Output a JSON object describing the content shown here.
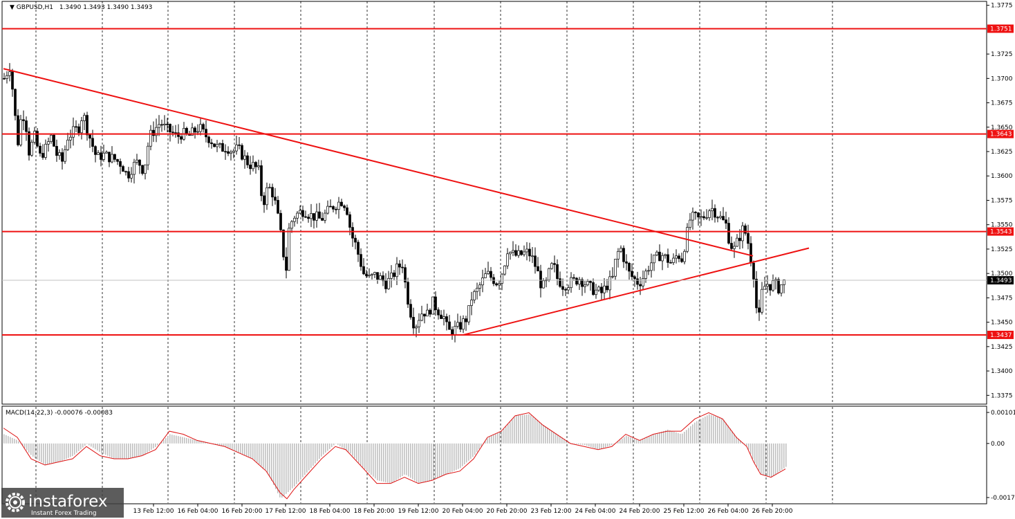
{
  "header": {
    "symbol": "GBPUSD,H1",
    "ohlc": "1.3490 1.3493 1.3490 1.3493"
  },
  "macd": {
    "label": "MACD(14,22,3) -0.00076 -0.00083"
  },
  "colors": {
    "level_line": "#ee1111",
    "candle": "#000000",
    "macd_hist": "#c0c0c0",
    "macd_signal": "#dd1111",
    "grid": "#000000"
  },
  "brand": {
    "name": "instaforex",
    "tagline": "Instant Forex Trading"
  },
  "chart_data": [
    {
      "type": "candlestick",
      "symbol": "GBPUSD",
      "timeframe": "H1",
      "y_ticks": [
        "1.3775",
        "1.3725",
        "1.3700",
        "1.3675",
        "1.3650",
        "1.3625",
        "1.3600",
        "1.3575",
        "1.3550",
        "1.3525",
        "1.3500",
        "1.3475",
        "1.3450",
        "1.3425",
        "1.3400",
        "1.3375"
      ],
      "ylim": [
        1.3366,
        1.3779
      ],
      "x_ticks": [
        "13 Feb 12:00",
        "16 Feb 04:00",
        "16 Feb 20:00",
        "17 Feb 12:00",
        "18 Feb 04:00",
        "18 Feb 20:00",
        "19 Feb 12:00",
        "20 Feb 04:00",
        "20 Feb 20:00",
        "23 Feb 12:00",
        "24 Feb 04:00",
        "24 Feb 20:00",
        "25 Feb 12:00",
        "26 Feb 04:00",
        "26 Feb 20:00"
      ],
      "horizontal_levels": [
        {
          "value": 1.3751,
          "label": "1.3751"
        },
        {
          "value": 1.3643,
          "label": "1.3643"
        },
        {
          "value": 1.3543,
          "label": "1.3543"
        },
        {
          "value": 1.3437,
          "label": "1.3437"
        }
      ],
      "current_price": {
        "value": 1.3493,
        "label": "1.3493"
      },
      "trendlines": [
        {
          "name": "descending resistance",
          "points": [
            [
              0,
              1.371
            ],
            [
              1084,
              1.3518
            ]
          ]
        },
        {
          "name": "ascending support",
          "points": [
            [
              665,
              1.3437
            ],
            [
              1165,
              1.3526
            ]
          ]
        }
      ],
      "price_path": [
        [
          0,
          1.37
        ],
        [
          8,
          1.3712
        ],
        [
          12,
          1.369
        ],
        [
          16,
          1.366
        ],
        [
          20,
          1.3635
        ],
        [
          26,
          1.3668
        ],
        [
          32,
          1.365
        ],
        [
          36,
          1.3625
        ],
        [
          44,
          1.364
        ],
        [
          52,
          1.362
        ],
        [
          60,
          1.3628
        ],
        [
          68,
          1.364
        ],
        [
          76,
          1.3622
        ],
        [
          84,
          1.3615
        ],
        [
          92,
          1.364
        ],
        [
          100,
          1.3645
        ],
        [
          108,
          1.365
        ],
        [
          114,
          1.3665
        ],
        [
          120,
          1.3648
        ],
        [
          126,
          1.3635
        ],
        [
          134,
          1.3618
        ],
        [
          142,
          1.3622
        ],
        [
          150,
          1.362
        ],
        [
          160,
          1.3617
        ],
        [
          170,
          1.3612
        ],
        [
          178,
          1.36
        ],
        [
          186,
          1.361
        ],
        [
          194,
          1.3615
        ],
        [
          202,
          1.3605
        ],
        [
          210,
          1.364
        ],
        [
          218,
          1.3648
        ],
        [
          226,
          1.3655
        ],
        [
          234,
          1.3648
        ],
        [
          242,
          1.3645
        ],
        [
          250,
          1.364
        ],
        [
          258,
          1.3644
        ],
        [
          266,
          1.364
        ],
        [
          274,
          1.3645
        ],
        [
          282,
          1.365
        ],
        [
          290,
          1.3642
        ],
        [
          298,
          1.3638
        ],
        [
          306,
          1.363
        ],
        [
          314,
          1.3628
        ],
        [
          322,
          1.363
        ],
        [
          330,
          1.3625
        ],
        [
          338,
          1.3628
        ],
        [
          346,
          1.362
        ],
        [
          354,
          1.3612
        ],
        [
          362,
          1.361
        ],
        [
          368,
          1.3605
        ],
        [
          374,
          1.357
        ],
        [
          380,
          1.3585
        ],
        [
          386,
          1.3588
        ],
        [
          392,
          1.3572
        ],
        [
          398,
          1.355
        ],
        [
          404,
          1.352
        ],
        [
          408,
          1.3505
        ],
        [
          412,
          1.3545
        ],
        [
          418,
          1.3558
        ],
        [
          426,
          1.3562
        ],
        [
          434,
          1.3565
        ],
        [
          442,
          1.356
        ],
        [
          450,
          1.3558
        ],
        [
          458,
          1.3555
        ],
        [
          466,
          1.3562
        ],
        [
          474,
          1.3568
        ],
        [
          482,
          1.3572
        ],
        [
          490,
          1.3575
        ],
        [
          496,
          1.3565
        ],
        [
          502,
          1.354
        ],
        [
          508,
          1.353
        ],
        [
          514,
          1.3515
        ],
        [
          520,
          1.35
        ],
        [
          528,
          1.3495
        ],
        [
          536,
          1.3498
        ],
        [
          544,
          1.3495
        ],
        [
          552,
          1.349
        ],
        [
          560,
          1.3495
        ],
        [
          568,
          1.3505
        ],
        [
          576,
          1.351
        ],
        [
          582,
          1.348
        ],
        [
          588,
          1.346
        ],
        [
          594,
          1.3445
        ],
        [
          600,
          1.3455
        ],
        [
          606,
          1.3462
        ],
        [
          612,
          1.3458
        ],
        [
          620,
          1.347
        ],
        [
          628,
          1.3462
        ],
        [
          636,
          1.3455
        ],
        [
          642,
          1.344
        ],
        [
          650,
          1.3442
        ],
        [
          658,
          1.3445
        ],
        [
          664,
          1.345
        ],
        [
          670,
          1.3455
        ],
        [
          676,
          1.3475
        ],
        [
          682,
          1.348
        ],
        [
          690,
          1.349
        ],
        [
          698,
          1.35
        ],
        [
          706,
          1.3495
        ],
        [
          714,
          1.349
        ],
        [
          722,
          1.3505
        ],
        [
          728,
          1.3525
        ],
        [
          734,
          1.352
        ],
        [
          742,
          1.3518
        ],
        [
          750,
          1.352
        ],
        [
          758,
          1.3522
        ],
        [
          764,
          1.3515
        ],
        [
          770,
          1.3505
        ],
        [
          776,
          1.349
        ],
        [
          782,
          1.3485
        ],
        [
          788,
          1.35
        ],
        [
          794,
          1.351
        ],
        [
          800,
          1.3495
        ],
        [
          808,
          1.3488
        ],
        [
          816,
          1.349
        ],
        [
          824,
          1.3492
        ],
        [
          832,
          1.3495
        ],
        [
          840,
          1.349
        ],
        [
          848,
          1.3485
        ],
        [
          856,
          1.3482
        ],
        [
          864,
          1.348
        ],
        [
          872,
          1.3488
        ],
        [
          880,
          1.3495
        ],
        [
          886,
          1.352
        ],
        [
          892,
          1.3525
        ],
        [
          898,
          1.3512
        ],
        [
          904,
          1.35
        ],
        [
          910,
          1.3495
        ],
        [
          918,
          1.349
        ],
        [
          926,
          1.3498
        ],
        [
          934,
          1.351
        ],
        [
          942,
          1.3515
        ],
        [
          950,
          1.352
        ],
        [
          958,
          1.3515
        ],
        [
          966,
          1.351
        ],
        [
          974,
          1.352
        ],
        [
          980,
          1.3515
        ],
        [
          986,
          1.3535
        ],
        [
          992,
          1.3555
        ],
        [
          998,
          1.3558
        ],
        [
          1006,
          1.3555
        ],
        [
          1014,
          1.356
        ],
        [
          1022,
          1.3568
        ],
        [
          1030,
          1.3562
        ],
        [
          1038,
          1.3555
        ],
        [
          1044,
          1.355
        ],
        [
          1050,
          1.353
        ],
        [
          1056,
          1.3525
        ],
        [
          1062,
          1.3535
        ],
        [
          1068,
          1.3545
        ],
        [
          1074,
          1.354
        ],
        [
          1080,
          1.3515
        ],
        [
          1084,
          1.35
        ],
        [
          1088,
          1.3465
        ],
        [
          1092,
          1.3455
        ],
        [
          1096,
          1.348
        ],
        [
          1102,
          1.349
        ],
        [
          1108,
          1.3488
        ],
        [
          1114,
          1.349
        ],
        [
          1120,
          1.3485
        ],
        [
          1126,
          1.349
        ],
        [
          1131,
          1.3493
        ]
      ]
    },
    {
      "type": "macd",
      "label": "MACD(14,22,3) -0.00076 -0.00083",
      "y_ticks": [
        "0.00101",
        "0.00",
        "-0.00176"
      ],
      "ylim": [
        -0.00176,
        0.00101
      ],
      "histogram_path": [
        [
          0,
          0.0003
        ],
        [
          20,
          0.0001
        ],
        [
          40,
          -0.0004
        ],
        [
          60,
          -0.0007
        ],
        [
          80,
          -0.0006
        ],
        [
          100,
          -0.0004
        ],
        [
          120,
          -2e-05
        ],
        [
          140,
          -0.0003
        ],
        [
          160,
          -0.0005
        ],
        [
          180,
          -0.0005
        ],
        [
          200,
          -0.0004
        ],
        [
          220,
          -0.0001
        ],
        [
          240,
          0.0003
        ],
        [
          260,
          0.0002
        ],
        [
          280,
          0.0001
        ],
        [
          300,
          0.0
        ],
        [
          320,
          -0.0001
        ],
        [
          340,
          -0.0003
        ],
        [
          360,
          -0.0005
        ],
        [
          380,
          -0.0009
        ],
        [
          400,
          -0.0018
        ],
        [
          420,
          -0.0014
        ],
        [
          440,
          -0.0009
        ],
        [
          460,
          -0.0004
        ],
        [
          480,
          0.0
        ],
        [
          500,
          -0.0003
        ],
        [
          520,
          -0.0008
        ],
        [
          540,
          -0.0012
        ],
        [
          560,
          -0.0013
        ],
        [
          580,
          -0.001
        ],
        [
          600,
          -0.0013
        ],
        [
          620,
          -0.0012
        ],
        [
          640,
          -0.001
        ],
        [
          660,
          -0.0008
        ],
        [
          680,
          -0.0004
        ],
        [
          700,
          0.0002
        ],
        [
          720,
          0.0004
        ],
        [
          740,
          0.0009
        ],
        [
          760,
          0.00095
        ],
        [
          780,
          0.0006
        ],
        [
          800,
          0.0003
        ],
        [
          820,
          0.0
        ],
        [
          840,
          -5e-05
        ],
        [
          860,
          -0.0002
        ],
        [
          880,
          -5e-05
        ],
        [
          900,
          0.00025
        ],
        [
          920,
          0.0001
        ],
        [
          940,
          0.0003
        ],
        [
          960,
          0.00045
        ],
        [
          980,
          0.0003
        ],
        [
          1000,
          0.0007
        ],
        [
          1020,
          0.00095
        ],
        [
          1040,
          0.0008
        ],
        [
          1060,
          0.0002
        ],
        [
          1075,
          -0.0001
        ],
        [
          1085,
          -0.0006
        ],
        [
          1095,
          -0.001
        ],
        [
          1110,
          -0.0011
        ],
        [
          1131,
          -0.00076
        ]
      ],
      "signal_path": [
        [
          0,
          0.0005
        ],
        [
          20,
          0.0002
        ],
        [
          40,
          -0.0005
        ],
        [
          60,
          -0.0007
        ],
        [
          80,
          -0.0006
        ],
        [
          100,
          -0.0005
        ],
        [
          120,
          -0.0001
        ],
        [
          140,
          -0.0004
        ],
        [
          160,
          -0.0005
        ],
        [
          180,
          -0.0005
        ],
        [
          200,
          -0.0004
        ],
        [
          220,
          -0.0002
        ],
        [
          240,
          0.0004
        ],
        [
          260,
          0.0003
        ],
        [
          280,
          0.0001
        ],
        [
          300,
          0.0
        ],
        [
          320,
          -0.0001
        ],
        [
          340,
          -0.0003
        ],
        [
          360,
          -0.0005
        ],
        [
          380,
          -0.0009
        ],
        [
          400,
          -0.0016
        ],
        [
          410,
          -0.0018
        ],
        [
          420,
          -0.0015
        ],
        [
          440,
          -0.001
        ],
        [
          460,
          -0.0005
        ],
        [
          480,
          -0.0001
        ],
        [
          495,
          -0.0002
        ],
        [
          520,
          -0.0008
        ],
        [
          540,
          -0.0013
        ],
        [
          560,
          -0.0013
        ],
        [
          580,
          -0.0011
        ],
        [
          600,
          -0.0013
        ],
        [
          620,
          -0.0012
        ],
        [
          640,
          -0.001
        ],
        [
          660,
          -0.0009
        ],
        [
          680,
          -0.0005
        ],
        [
          700,
          0.0002
        ],
        [
          720,
          0.0004
        ],
        [
          740,
          0.0009
        ],
        [
          760,
          0.001
        ],
        [
          780,
          0.0006
        ],
        [
          800,
          0.0003
        ],
        [
          820,
          0.0
        ],
        [
          840,
          -0.0001
        ],
        [
          860,
          -0.0002
        ],
        [
          880,
          -0.0001
        ],
        [
          900,
          0.0003
        ],
        [
          920,
          0.0001
        ],
        [
          940,
          0.0003
        ],
        [
          960,
          0.0004
        ],
        [
          980,
          0.0004
        ],
        [
          1000,
          0.0008
        ],
        [
          1020,
          0.001
        ],
        [
          1040,
          0.0008
        ],
        [
          1060,
          0.0002
        ],
        [
          1075,
          -0.0001
        ],
        [
          1085,
          -0.0006
        ],
        [
          1095,
          -0.001
        ],
        [
          1110,
          -0.0011
        ],
        [
          1131,
          -0.00083
        ]
      ]
    }
  ]
}
